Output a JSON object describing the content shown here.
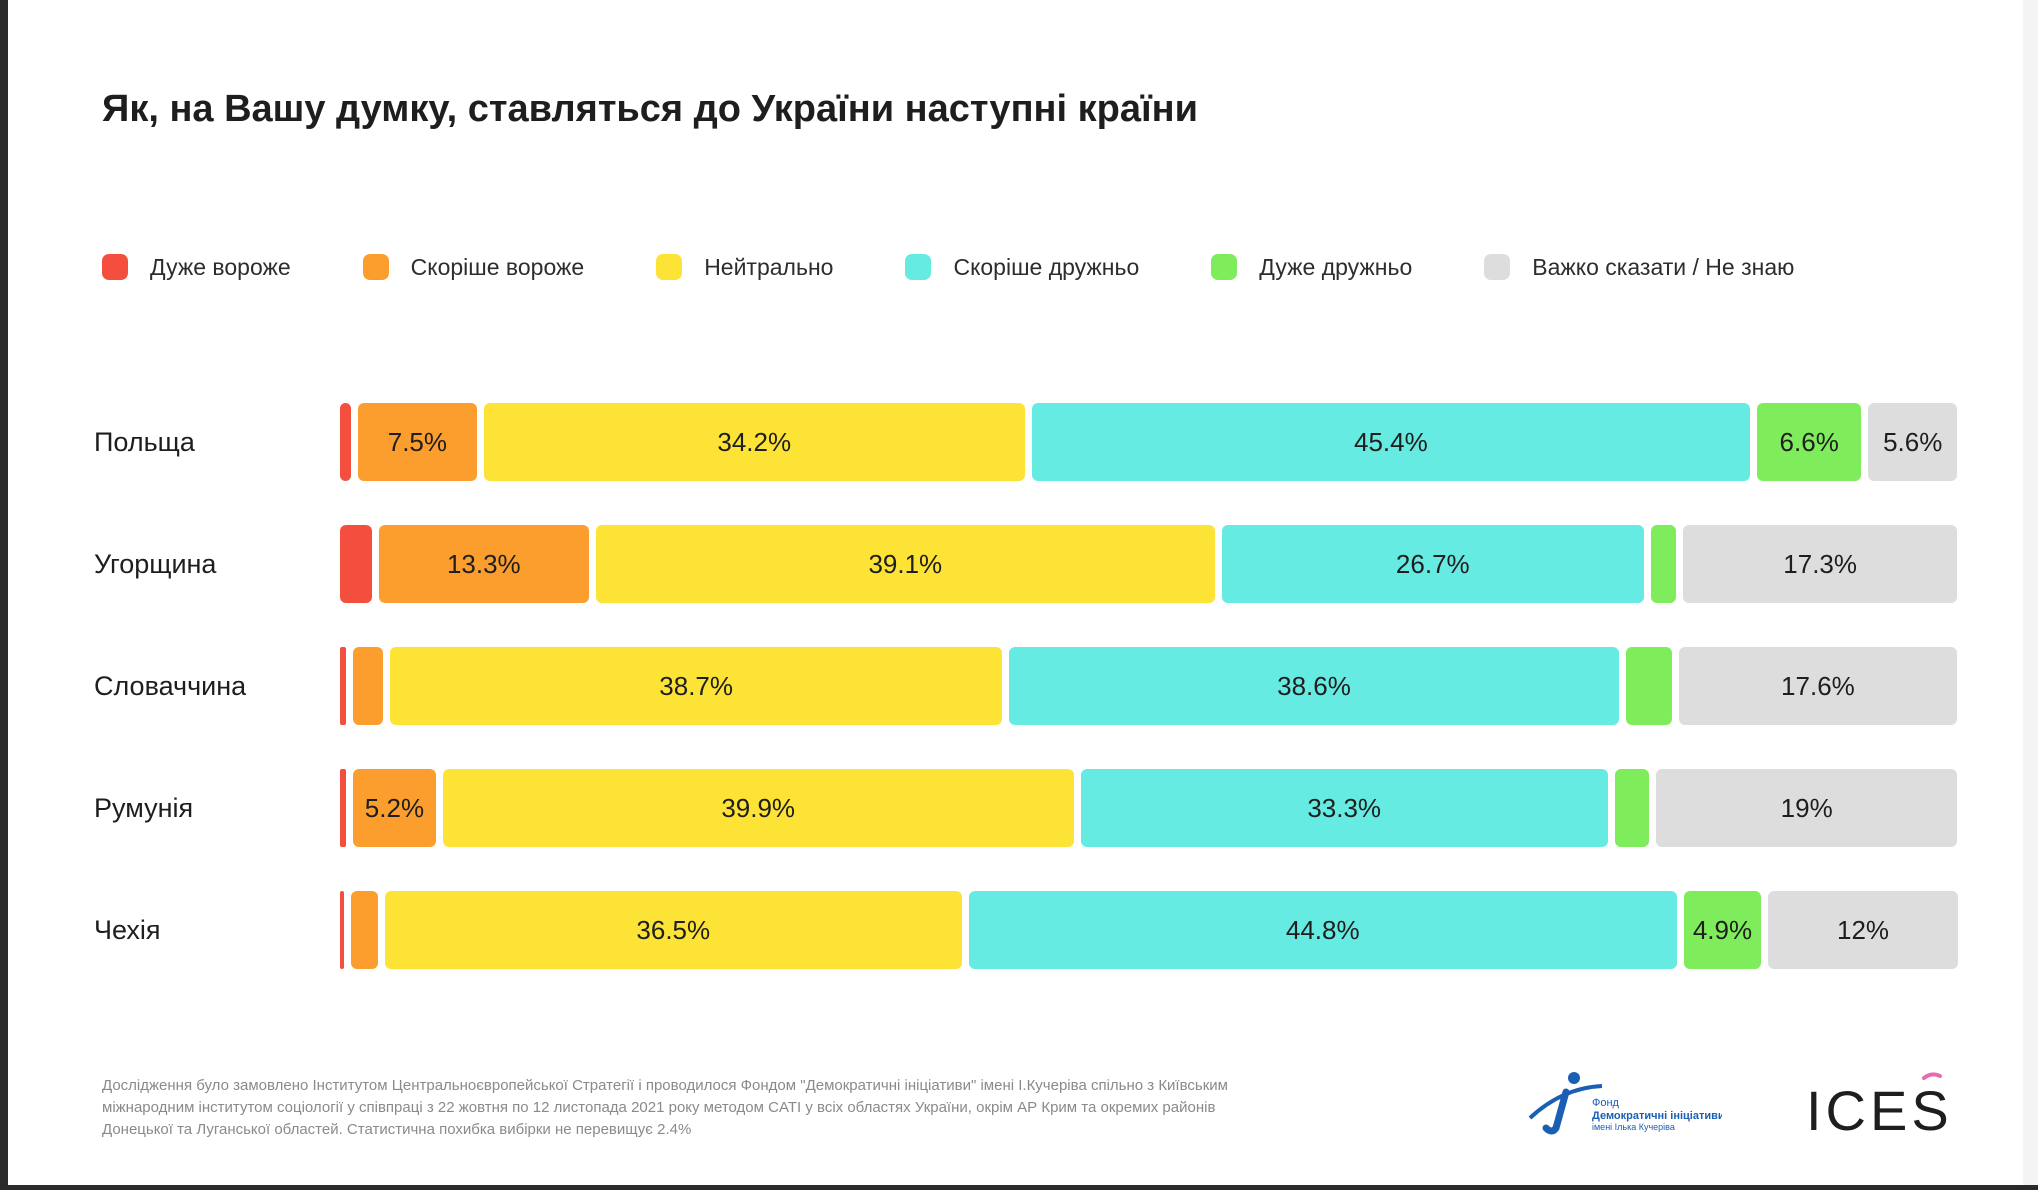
{
  "title": "Як, на Вашу думку, ставляться до України наступні країни",
  "legend": [
    {
      "label": "Дуже вороже",
      "color": "#f44e3f"
    },
    {
      "label": "Скоріше вороже",
      "color": "#fb9e2e"
    },
    {
      "label": "Нейтрально",
      "color": "#fde336"
    },
    {
      "label": "Скоріше дружньо",
      "color": "#66ebe3"
    },
    {
      "label": "Дуже дружньо",
      "color": "#7fed5b"
    },
    {
      "label": "Важко сказати / Не знаю",
      "color": "#dddddd"
    }
  ],
  "chart_data": {
    "type": "bar",
    "orientation": "horizontal",
    "stacked": true,
    "title": "Як, на Вашу думку, ставляться до України наступні країни",
    "unit": "%",
    "categories": [
      "Польща",
      "Угорщина",
      "Словаччина",
      "Румунія",
      "Чехія"
    ],
    "series": [
      {
        "name": "Дуже вороже",
        "color": "#f44e3f",
        "values": [
          0.7,
          2.0,
          0.4,
          0.4,
          0.2
        ],
        "labels": [
          "",
          "",
          "",
          "",
          ""
        ]
      },
      {
        "name": "Скоріше вороже",
        "color": "#fb9e2e",
        "values": [
          7.5,
          13.3,
          1.9,
          5.2,
          1.7
        ],
        "labels": [
          "7.5%",
          "13.3%",
          "",
          "5.2%",
          ""
        ]
      },
      {
        "name": "Нейтрально",
        "color": "#fde336",
        "values": [
          34.2,
          39.1,
          38.7,
          39.9,
          36.5
        ],
        "labels": [
          "34.2%",
          "39.1%",
          "38.7%",
          "39.9%",
          "36.5%"
        ]
      },
      {
        "name": "Скоріше дружньо",
        "color": "#66ebe3",
        "values": [
          45.4,
          26.7,
          38.6,
          33.3,
          44.8
        ],
        "labels": [
          "45.4%",
          "26.7%",
          "38.6%",
          "33.3%",
          "44.8%"
        ]
      },
      {
        "name": "Дуже дружньо",
        "color": "#7fed5b",
        "values": [
          6.6,
          1.6,
          2.9,
          2.2,
          4.9
        ],
        "labels": [
          "6.6%",
          "",
          "",
          "",
          "4.9%"
        ]
      },
      {
        "name": "Важко сказати / Не знаю",
        "color": "#dddddd",
        "values": [
          5.6,
          17.3,
          17.6,
          19.0,
          12.0
        ],
        "labels": [
          "5.6%",
          "17.3%",
          "17.6%",
          "19%",
          "12%"
        ]
      }
    ]
  },
  "footnote": "Дослідження було замовлено Інститутом Центральноєвропейської Стратегії і проводилося Фондом \"Демократичні ініціативи\" імені І.Кучеріва спільно з Київським міжнародним інститутом соціології у співпраці з 22 жовтня по 12 листопада 2021 року методом CATI у всіх областях України, окрім АР Крим та окремих районів Донецької та Луганської областей. Статистична похибка вибірки не перевищує 2.4%",
  "logos": {
    "dif": {
      "line1": "Фонд",
      "line2": "Демократичні ініціативи",
      "line3": "імені Ілька Кучеріва"
    },
    "ices": "ICES"
  }
}
